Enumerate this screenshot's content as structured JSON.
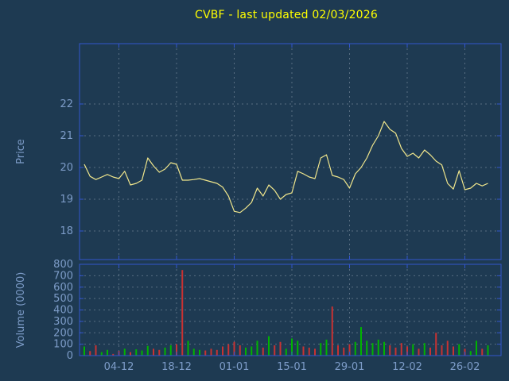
{
  "title": "CVBF - last updated 02/03/2026",
  "colors": {
    "background": "#1e3a52",
    "frame": "#3355cc",
    "grid": "#8899aa",
    "title": "#ffff00",
    "tick_label": "#7d9cc8",
    "price_line": "#f0e68c",
    "volume_up": "#00b400",
    "volume_down": "#c83232"
  },
  "chart_data": [
    {
      "type": "line",
      "name": "price-panel",
      "title": "CVBF - last updated 02/03/2026",
      "ylabel": "Price",
      "ylim": [
        17.1,
        23.9
      ],
      "yticks": [
        18,
        19,
        20,
        21,
        22
      ],
      "ytick_labels": [
        "18",
        "19",
        "20",
        "21",
        "22"
      ],
      "x_tick_labels": [
        "04-12",
        "18-12",
        "01-01",
        "15-01",
        "29-01",
        "12-02",
        "26-02"
      ],
      "x_tick_indices": [
        6,
        16,
        26,
        36,
        46,
        56,
        66
      ],
      "grid": "dashed",
      "series": [
        {
          "name": "price",
          "values": [
            20.1,
            19.72,
            19.62,
            19.7,
            19.78,
            19.7,
            19.65,
            19.88,
            19.45,
            19.5,
            19.6,
            20.3,
            20.05,
            19.85,
            19.95,
            20.15,
            20.1,
            19.6,
            19.6,
            19.62,
            19.65,
            19.6,
            19.55,
            19.5,
            19.38,
            19.1,
            18.62,
            18.58,
            18.72,
            18.9,
            19.35,
            19.1,
            19.45,
            19.28,
            19.0,
            19.15,
            19.2,
            19.88,
            19.8,
            19.7,
            19.65,
            20.3,
            20.4,
            19.75,
            19.7,
            19.62,
            19.35,
            19.8,
            20.0,
            20.3,
            20.7,
            21.0,
            21.45,
            21.2,
            21.08,
            20.6,
            20.35,
            20.45,
            20.3,
            20.55,
            20.4,
            20.2,
            20.08,
            19.5,
            19.32,
            19.9,
            19.3,
            19.35,
            19.5,
            19.42,
            19.5
          ]
        }
      ]
    },
    {
      "type": "bar",
      "name": "volume-panel",
      "ylabel": "Volume (0000)",
      "ylim": [
        0,
        800
      ],
      "yticks": [
        0,
        100,
        200,
        300,
        400,
        500,
        600,
        700,
        800
      ],
      "ytick_labels": [
        "0",
        "100",
        "200",
        "300",
        "400",
        "500",
        "600",
        "700",
        "800"
      ],
      "x_shared_with": "price-panel",
      "grid": "dashed",
      "bar_color_rule": "green when price >= previous close, red when price fell",
      "series": [
        {
          "name": "volume",
          "values": [
            80,
            40,
            90,
            30,
            50,
            15,
            40,
            60,
            30,
            55,
            45,
            85,
            60,
            50,
            70,
            90,
            100,
            750,
            130,
            60,
            50,
            45,
            60,
            50,
            80,
            100,
            120,
            90,
            70,
            80,
            130,
            70,
            170,
            90,
            120,
            60,
            150,
            130,
            80,
            70,
            60,
            110,
            140,
            430,
            90,
            70,
            100,
            120,
            250,
            130,
            110,
            140,
            120,
            90,
            70,
            110,
            80,
            100,
            60,
            110,
            70,
            200,
            90,
            130,
            80,
            100,
            60,
            40,
            130,
            60,
            90
          ]
        }
      ]
    }
  ]
}
